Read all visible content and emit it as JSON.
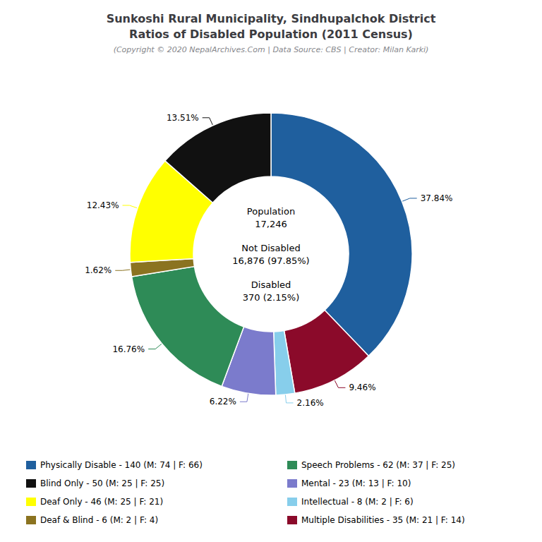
{
  "chart_data": {
    "type": "pie",
    "title": "Sunkoshi Rural Municipality, Sindhupalchok District\nRatios of Disabled Population (2011 Census)",
    "subtitle": "(Copyright © 2020 NepalArchives.Com | Data Source: CBS | Creator: Milan Karki)",
    "categories": [
      "Physically Disable - 140 (M: 74 | F: 66)",
      "Multiple Disabilities - 35 (M: 21 | F: 14)",
      "Intellectual - 8 (M: 2 | F: 6)",
      "Mental - 23 (M: 13 | F: 10)",
      "Speech Problems - 62 (M: 37 | F: 25)",
      "Deaf & Blind - 6 (M: 2 | F: 4)",
      "Deaf Only - 46 (M: 25 | F: 21)",
      "Blind Only - 50 (M: 25 | F: 25)"
    ],
    "values": [
      37.84,
      9.46,
      2.16,
      6.22,
      16.76,
      1.62,
      12.43,
      13.51
    ],
    "value_labels": [
      "37.84%",
      "9.46%",
      "2.16%",
      "6.22%",
      "16.76%",
      "1.62%",
      "12.43%",
      "13.51%"
    ],
    "colors": [
      "#1f5f9e",
      "#8b0a2a",
      "#87ceeb",
      "#7b7bcc",
      "#2e8b57",
      "#8b7320",
      "#ffff00",
      "#111111"
    ],
    "data_labels": true,
    "legend": "bottom",
    "legend_order": [
      "Physically Disable - 140 (M: 74 | F: 66)",
      "Blind Only - 50 (M: 25 | F: 25)",
      "Deaf Only - 46 (M: 25 | F: 21)",
      "Deaf & Blind - 6 (M: 2 | F: 4)",
      "Speech Problems - 62 (M: 37 | F: 25)",
      "Mental - 23 (M: 13 | F: 10)",
      "Intellectual - 8 (M: 2 | F: 6)",
      "Multiple Disabilities - 35 (M: 21 | F: 14)"
    ],
    "annotations": [
      "Population\n17,246",
      "Not Disabled\n16,876 (97.85%)",
      "Disabled\n370 (2.15%)"
    ]
  }
}
